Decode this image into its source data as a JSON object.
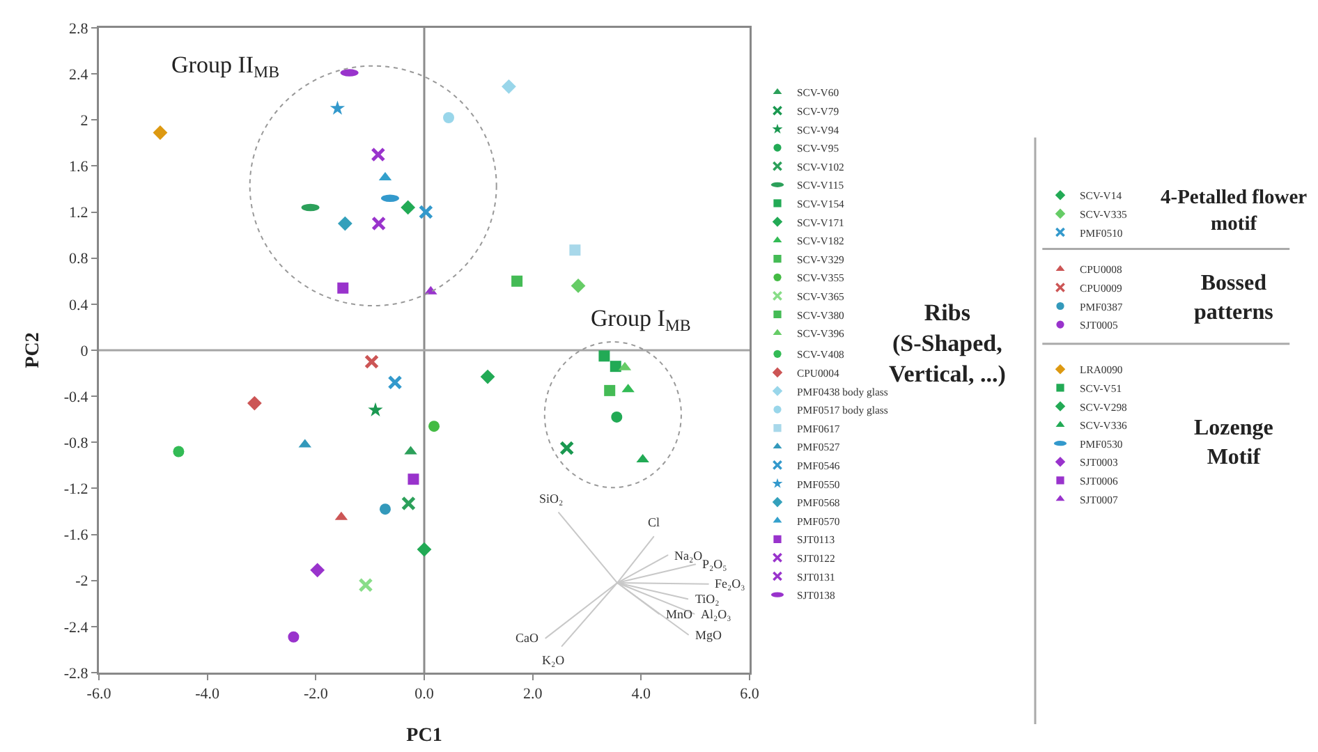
{
  "chart_data": {
    "type": "scatter",
    "xlabel": "PC1",
    "ylabel": "PC2",
    "xlim": [
      -6,
      6
    ],
    "ylim": [
      -2.8,
      2.8
    ],
    "xticks": [
      {
        "value": -6,
        "label": "-6.0"
      },
      {
        "value": -4,
        "label": "-4.0"
      },
      {
        "value": -2,
        "label": "-2.0"
      },
      {
        "value": 0,
        "label": "0.0"
      },
      {
        "value": 2,
        "label": "2.0"
      },
      {
        "value": 4,
        "label": "4.0"
      },
      {
        "value": 6,
        "label": "6.0"
      }
    ],
    "yticks": [
      -2.8,
      -2.4,
      -2,
      -1.6,
      -1.2,
      -0.8,
      -0.4,
      0,
      0.4,
      0.8,
      1.2,
      1.6,
      2,
      2.4,
      2.8
    ],
    "grid": false,
    "legend": "right",
    "ref_lines": [
      {
        "axis": "x",
        "value": 0,
        "color": "#8c8c8c"
      },
      {
        "axis": "y",
        "value": 0,
        "color": "#a6a6a6"
      }
    ],
    "series": [
      {
        "name": "SCV-V60",
        "color": "#2ca05a",
        "marker": "triangle",
        "x": [
          -0.25
        ],
        "values": [
          -0.88
        ]
      },
      {
        "name": "SCV-V79",
        "color": "#1a9850",
        "marker": "cross",
        "x": [
          2.63
        ],
        "values": [
          -0.85
        ]
      },
      {
        "name": "SCV-V94",
        "color": "#1a9850",
        "marker": "star",
        "x": [
          -0.9
        ],
        "values": [
          -0.52
        ]
      },
      {
        "name": "SCV-V95",
        "color": "#22aa55",
        "marker": "circle",
        "x": [
          3.55
        ],
        "values": [
          -0.58
        ]
      },
      {
        "name": "SCV-V102",
        "color": "#2ca05a",
        "marker": "cross",
        "x": [
          -0.29
        ],
        "values": [
          -1.33
        ]
      },
      {
        "name": "SCV-V115",
        "color": "#2ca05a",
        "x": [
          -2.1
        ],
        "values": [
          1.24
        ]
      },
      {
        "name": "SCV-V154",
        "color": "#22aa55",
        "marker": "square",
        "x": [
          3.53
        ],
        "values": [
          -0.14
        ]
      },
      {
        "name": "SCV-V171",
        "color": "#22aa55",
        "marker": "diamond",
        "x": [
          1.17
        ],
        "values": [
          -0.23
        ]
      },
      {
        "name": "SCV-V182",
        "color": "#33bb55",
        "marker": "triangle",
        "x": [
          3.76
        ],
        "values": [
          -0.34
        ]
      },
      {
        "name": "SCV-V329",
        "color": "#44bb55",
        "marker": "square",
        "x": [
          1.71
        ],
        "values": [
          0.6
        ]
      },
      {
        "name": "SCV-V355",
        "color": "#44bb44",
        "marker": "circle",
        "x": [
          0.18
        ],
        "values": [
          -0.66
        ]
      },
      {
        "name": "SCV-V365",
        "color": "#88dd88",
        "marker": "cross",
        "x": [
          -1.08
        ],
        "values": [
          -2.04
        ]
      },
      {
        "name": "SCV-V380",
        "color": "#44bb55",
        "marker": "square",
        "x": [
          3.42
        ],
        "values": [
          -0.35
        ]
      },
      {
        "name": "SCV-V396",
        "color": "#66cc66",
        "marker": "triangle",
        "x": [
          3.7
        ],
        "values": [
          -0.15
        ]
      },
      {
        "name": "SCV-V408",
        "color": "#33bb55",
        "marker": "circle",
        "x": [
          -4.53
        ],
        "values": [
          -0.88
        ]
      },
      {
        "name": "CPU0004",
        "color": "#cc5555",
        "marker": "diamond",
        "x": [
          -3.13
        ],
        "values": [
          -0.46
        ]
      },
      {
        "name": "PMF0438 body glass",
        "color": "#99d6ea",
        "marker": "diamond",
        "x": [
          1.56
        ],
        "values": [
          2.29
        ]
      },
      {
        "name": "PMF0517 body glass",
        "color": "#99d6ea",
        "marker": "circle",
        "x": [
          0.45
        ],
        "values": [
          2.02
        ]
      },
      {
        "name": "PMF0617",
        "color": "#a8d8ea",
        "marker": "square",
        "x": [
          2.78
        ],
        "values": [
          0.87
        ]
      },
      {
        "name": "PMF0527",
        "color": "#3399bb",
        "marker": "triangle",
        "x": [
          -2.2
        ],
        "values": [
          -0.82
        ]
      },
      {
        "name": "PMF0546",
        "color": "#3399cc",
        "marker": "cross",
        "x": [
          -0.54
        ],
        "values": [
          -0.28
        ]
      },
      {
        "name": "PMF0550",
        "color": "#3399cc",
        "marker": "star",
        "x": [
          -1.6
        ],
        "values": [
          2.1
        ]
      },
      {
        "name": "PMF0568",
        "color": "#33a0bb",
        "marker": "diamond",
        "x": [
          -1.46
        ],
        "values": [
          1.1
        ]
      },
      {
        "name": "PMF0570",
        "color": "#33a0cc",
        "marker": "triangle",
        "x": [
          -0.72
        ],
        "values": [
          1.5
        ]
      },
      {
        "name": "SJT0113",
        "color": "#9933cc",
        "marker": "square",
        "x": [
          -1.5
        ],
        "values": [
          0.54
        ]
      },
      {
        "name": "SJT0122",
        "color": "#9933cc",
        "marker": "cross",
        "x": [
          -0.85
        ],
        "values": [
          1.7
        ]
      },
      {
        "name": "SJT0131",
        "color": "#9933cc",
        "marker": "cross",
        "x": [
          -0.84
        ],
        "values": [
          1.1
        ]
      },
      {
        "name": "SJT0138",
        "color": "#9933cc",
        "x": [
          -1.38
        ],
        "values": [
          2.41
        ]
      },
      {
        "name": "SCV-V14",
        "color": "#22aa55",
        "marker": "diamond",
        "x": [
          -0.3
        ],
        "values": [
          1.24
        ]
      },
      {
        "name": "SCV-V335",
        "color": "#66cc66",
        "marker": "diamond",
        "x": [
          2.84
        ],
        "values": [
          0.56
        ]
      },
      {
        "name": "PMF0510",
        "color": "#3399cc",
        "marker": "cross",
        "x": [
          0.03
        ],
        "values": [
          1.2
        ]
      },
      {
        "name": "CPU0008",
        "color": "#cc5555",
        "marker": "triangle",
        "x": [
          -1.53
        ],
        "values": [
          -1.45
        ]
      },
      {
        "name": "CPU0009",
        "color": "#cc5555",
        "marker": "cross",
        "x": [
          -0.97
        ],
        "values": [
          -0.1
        ]
      },
      {
        "name": "PMF0387",
        "color": "#3399bb",
        "marker": "circle",
        "x": [
          -0.72
        ],
        "values": [
          -1.38
        ]
      },
      {
        "name": "SJT0005",
        "color": "#9933cc",
        "marker": "circle",
        "x": [
          -2.41
        ],
        "values": [
          -2.49
        ]
      },
      {
        "name": "LRA0090",
        "color": "#dd9911",
        "marker": "diamond",
        "x": [
          -4.87
        ],
        "values": [
          1.89
        ]
      },
      {
        "name": "SCV-V51",
        "color": "#22aa55",
        "marker": "square",
        "x": [
          3.32
        ],
        "values": [
          -0.05
        ]
      },
      {
        "name": "SCV-V298",
        "color": "#22aa55",
        "marker": "diamond",
        "x": [
          0
        ],
        "values": [
          -1.73
        ]
      },
      {
        "name": "SCV-V336",
        "color": "#22aa55",
        "marker": "triangle",
        "x": [
          4.03
        ],
        "values": [
          -0.95
        ]
      },
      {
        "name": "PMF0530",
        "color": "#3399cc",
        "x": [
          -0.63
        ],
        "values": [
          1.32
        ]
      },
      {
        "name": "SJT0003",
        "color": "#9933cc",
        "marker": "diamond",
        "x": [
          -1.97
        ],
        "values": [
          -1.91
        ]
      },
      {
        "name": "SJT0006",
        "color": "#9933cc",
        "marker": "square",
        "x": [
          -0.2
        ],
        "values": [
          -1.12
        ]
      },
      {
        "name": "SJT0007",
        "color": "#9933cc",
        "marker": "triangle",
        "x": [
          0.12
        ],
        "values": [
          0.51
        ]
      },
      {
        "type": "line",
        "color": "#c8c8c8",
        "marker": "none",
        "x": [
          3.56,
          2.48,
          null,
          3.56,
          4.23,
          null,
          3.56,
          4.49,
          null,
          3.56,
          5.0,
          null,
          3.56,
          5.24,
          null,
          3.56,
          4.86,
          null,
          3.56,
          4.33,
          null,
          3.56,
          4.98,
          null,
          3.56,
          4.87,
          null,
          3.56,
          2.24,
          null,
          3.56,
          2.54
        ],
        "values": [
          -2.02,
          -1.41,
          null,
          -2.02,
          -1.62,
          null,
          -2.02,
          -1.78,
          null,
          -2.02,
          -1.86,
          null,
          -2.02,
          -2.03,
          null,
          -2.02,
          -2.16,
          null,
          -2.02,
          -2.29,
          null,
          -2.02,
          -2.29,
          null,
          -2.02,
          -2.47,
          null,
          -2.02,
          -2.5,
          null,
          -2.02,
          -2.57
        ]
      }
    ],
    "annotations": [
      "Group II$_{MB}$",
      "Group I$_{MB}$",
      {
        "text": "SiO₂",
        "x": 2.48,
        "y": -1.41
      },
      {
        "text": "Cl",
        "x": 4.23,
        "y": -1.62
      },
      {
        "text": "Na₂O",
        "x": 4.49,
        "y": -1.78
      },
      {
        "text": "P₂O₅",
        "x": 5.0,
        "y": -1.86
      },
      {
        "text": "Fe₂O₃",
        "x": 5.24,
        "y": -2.03
      },
      {
        "text": "TiO₂",
        "x": 4.86,
        "y": -2.16
      },
      {
        "text": "MnO",
        "x": 4.33,
        "y": -2.29
      },
      {
        "text": "Al₂O₃",
        "x": 4.98,
        "y": -2.29
      },
      {
        "text": "MgO",
        "x": 4.87,
        "y": -2.47
      },
      {
        "text": "CaO",
        "x": 2.24,
        "y": -2.5
      },
      {
        "text": "K₂O",
        "x": 2.54,
        "y": -2.57
      },
      "Ribs\n(S-Shaped,\nVertical, ...)",
      "4-Petalled flower\nmotif",
      "Bossed\npatterns",
      "Lozenge\nMotif"
    ]
  }
}
